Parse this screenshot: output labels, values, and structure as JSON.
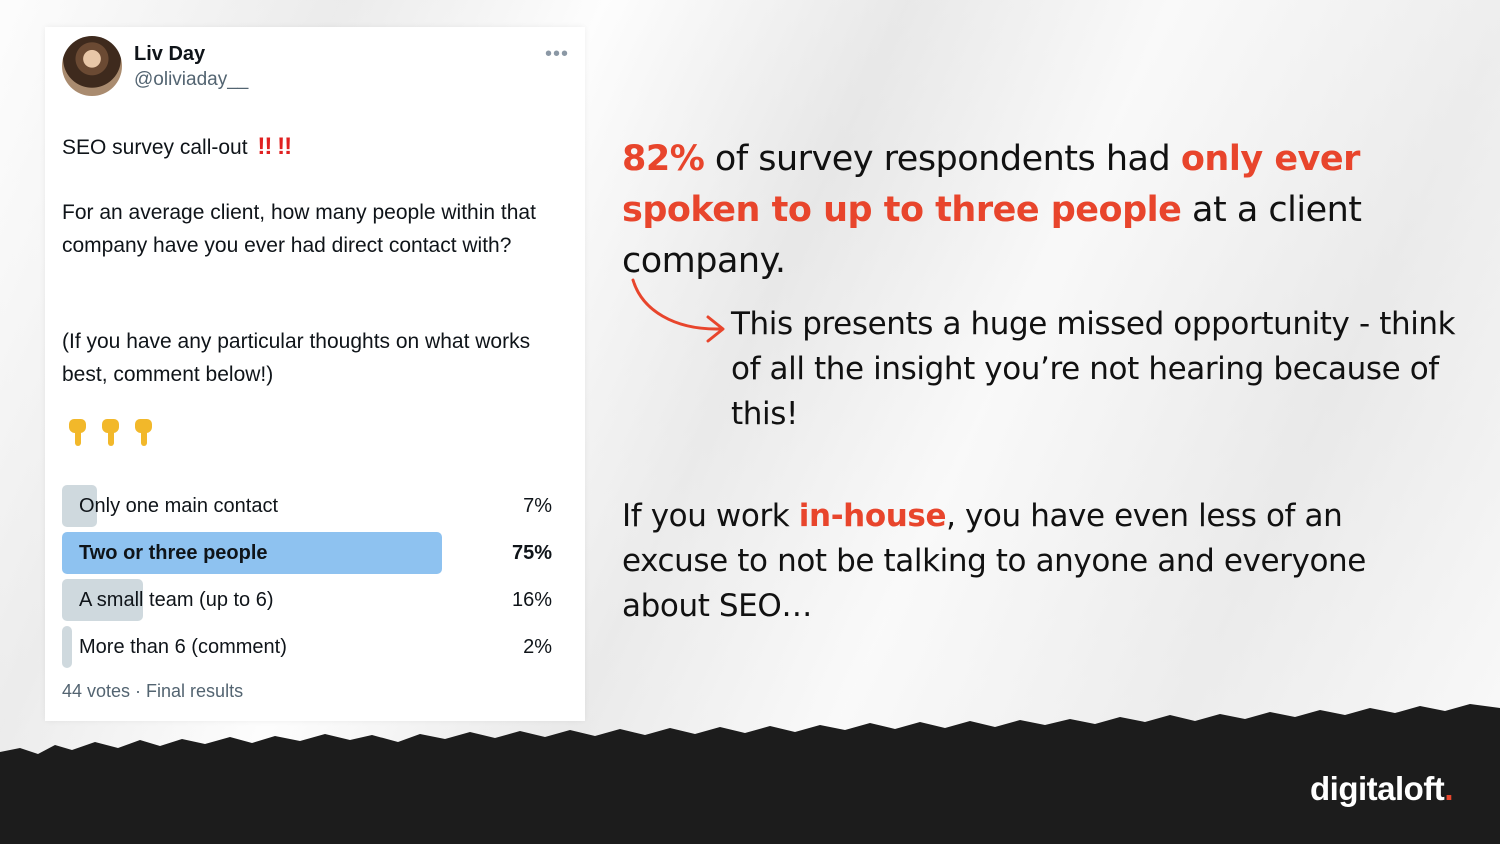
{
  "tweet": {
    "author_name": "Liv Day",
    "author_handle": "@oliviaday__",
    "more_icon": "more-horizontal-icon",
    "intro": "SEO survey call-out",
    "intro_marks": "‼️‼️",
    "question": "For an average client, how many people within that company have you ever had direct contact with?",
    "note": "(If you have any particular thoughts on what works best, comment below!)",
    "pointers_icon": "pointing-down-hand-icon",
    "poll": {
      "options": [
        {
          "label": "Only one main contact",
          "percent": "7%",
          "fraction": 0.07
        },
        {
          "label": "Two or three people",
          "percent": "75%",
          "fraction": 0.75
        },
        {
          "label": "A small team (up to 6)",
          "percent": "16%",
          "fraction": 0.16
        },
        {
          "label": "More than 6 (comment)",
          "percent": "2%",
          "fraction": 0.02
        }
      ],
      "meta": "44 votes · Final results"
    }
  },
  "headline": {
    "stat": "82%",
    "part1": " of survey respondents had ",
    "highlight": "only ever spoken to up to three people",
    "part2": " at a client company."
  },
  "insight": "This presents a huge missed opportunity - think of all the insight you’re not hearing because of this!",
  "inhouse": {
    "part1": "If you work ",
    "highlight": "in-house",
    "part2": ", you have even less of an excuse to not be talking to anyone and everyone about SEO…"
  },
  "brand": {
    "name": "digitaloft",
    "dot": ".",
    "accent_color": "#e8452c"
  },
  "colors": {
    "accent_red": "#e8452c",
    "poll_winner": "#8ec2f0",
    "poll_bar": "#cfd9de",
    "footer_bg": "#1c1c1c"
  }
}
